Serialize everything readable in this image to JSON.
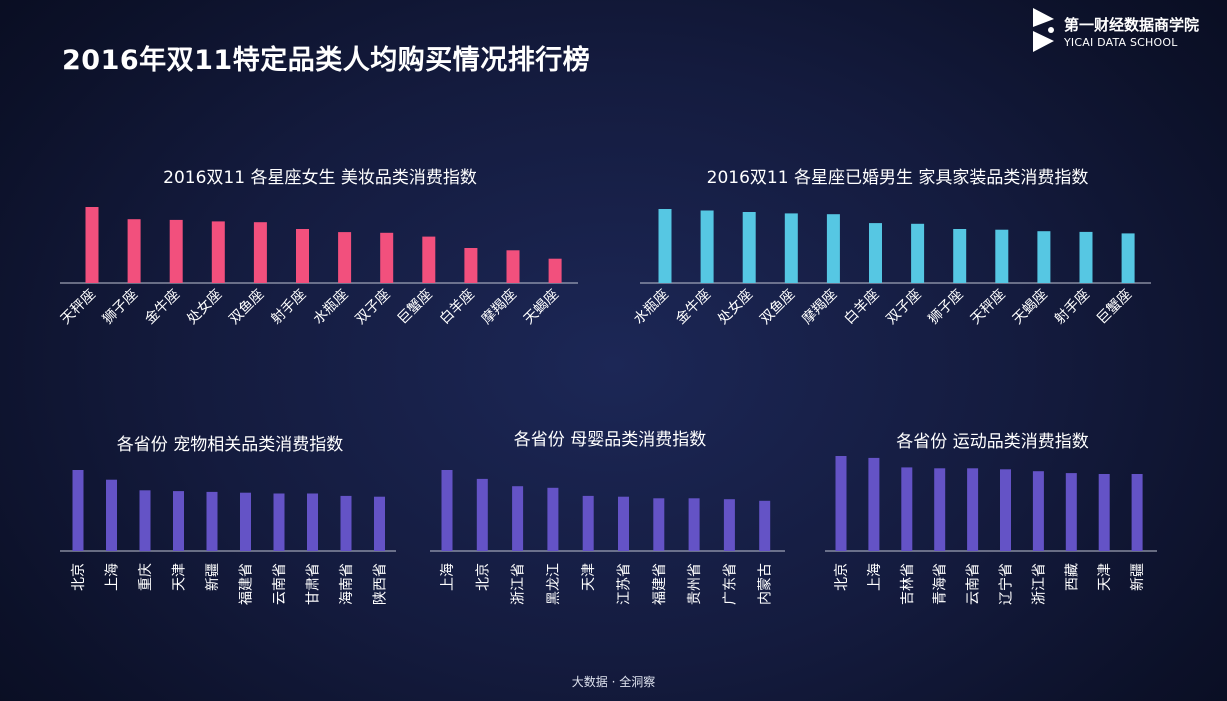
{
  "header": {
    "title": "2016年双11特定品类人均购买情况排行榜"
  },
  "brand": {
    "name_cn": "第一财经数据商学院",
    "name_en": "YICAI DATA SCHOOL",
    "logo_icon": "yicai-logo-icon"
  },
  "footer": {
    "text": "大数据 · 全洞察"
  },
  "colors": {
    "pink": "#f2507d",
    "cyan": "#56c7e3",
    "purple": "#6453c6",
    "axis": "#bfc3d2"
  },
  "chart_data": [
    {
      "id": "zodiac-female-beauty",
      "type": "bar",
      "title": "2016双11 各星座女生 美妆品类消费指数",
      "categories": [
        "天秤座",
        "狮子座",
        "金牛座",
        "处女座",
        "双鱼座",
        "射手座",
        "水瓶座",
        "双子座",
        "巨蟹座",
        "白羊座",
        "摩羯座",
        "天蝎座"
      ],
      "values": [
        100,
        84,
        83,
        81,
        80,
        71,
        67,
        66,
        61,
        46,
        43,
        32
      ],
      "ylim": [
        0,
        100
      ],
      "color": "#f2507d"
    },
    {
      "id": "zodiac-married-male-furniture",
      "type": "bar",
      "title": "2016双11 各星座已婚男生 家具家装品类消费指数",
      "categories": [
        "水瓶座",
        "金牛座",
        "处女座",
        "双鱼座",
        "摩羯座",
        "白羊座",
        "双子座",
        "狮子座",
        "天秤座",
        "天蝎座",
        "射手座",
        "巨蟹座"
      ],
      "values": [
        100,
        98,
        96,
        94,
        93,
        81,
        80,
        73,
        72,
        70,
        69,
        67
      ],
      "ylim": [
        0,
        100
      ],
      "color": "#56c7e3"
    },
    {
      "id": "province-pet",
      "type": "bar",
      "title": "各省份 宠物相关品类消费指数",
      "categories": [
        "北京",
        "上海",
        "重庆",
        "天津",
        "新疆",
        "福建省",
        "云南省",
        "甘肃省",
        "海南省",
        "陕西省"
      ],
      "values": [
        100,
        88,
        75,
        74,
        73,
        72,
        71,
        71,
        68,
        67
      ],
      "ylim": [
        0,
        100
      ],
      "color": "#6453c6"
    },
    {
      "id": "province-mother-baby",
      "type": "bar",
      "title": "各省份 母婴品类消费指数",
      "categories": [
        "上海",
        "北京",
        "浙江省",
        "黑龙江",
        "天津",
        "江苏省",
        "福建省",
        "贵州省",
        "广东省",
        "内蒙古"
      ],
      "values": [
        100,
        89,
        80,
        78,
        68,
        67,
        65,
        65,
        64,
        62
      ],
      "ylim": [
        0,
        100
      ],
      "color": "#6453c6"
    },
    {
      "id": "province-sports",
      "type": "bar",
      "title": "各省份 运动品类消费指数",
      "categories": [
        "北京",
        "上海",
        "吉林省",
        "青海省",
        "云南省",
        "辽宁省",
        "浙江省",
        "西藏",
        "天津",
        "新疆"
      ],
      "values": [
        100,
        98,
        88,
        87,
        87,
        86,
        84,
        82,
        81,
        81
      ],
      "ylim": [
        0,
        100
      ],
      "color": "#6453c6"
    }
  ]
}
